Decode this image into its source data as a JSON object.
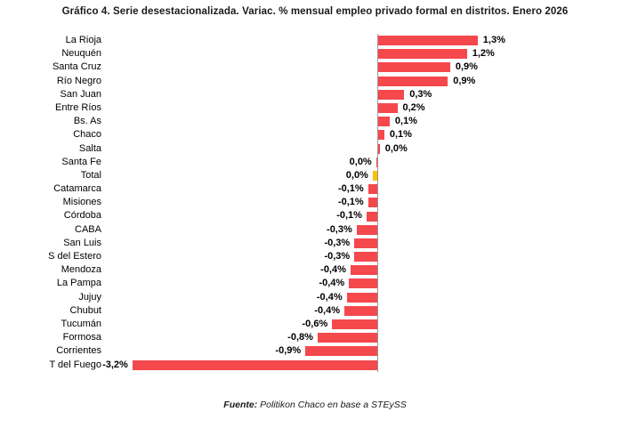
{
  "title": "Gráfico 4. Serie desestacionalizada. Variac. % mensual empleo privado formal en distritos. Enero 2026",
  "source": {
    "prefix": "Fuente:",
    "text": "Politikon Chaco en base a STEySS"
  },
  "colors": {
    "bar": "#F4484D",
    "highlight": "#FFC000",
    "axis": "#999999",
    "text": "#000000"
  },
  "chart_data": {
    "type": "bar",
    "orientation": "horizontal",
    "title": "Gráfico 4. Serie desestacionalizada. Variac. % mensual empleo privado formal en distritos. Enero 2026",
    "unit": "%",
    "value_axis_range": [
      -3.5,
      1.6
    ],
    "grid": false,
    "legend": false,
    "data_labels": true,
    "categories": [
      "La Rioja",
      "Neuquén",
      "Santa Cruz",
      "Río Negro",
      "San Juan",
      "Entre Ríos",
      "Bs. As",
      "Chaco",
      "Salta",
      "Santa Fe",
      "Total",
      "Catamarca",
      "Misiones",
      "Córdoba",
      "CABA",
      "San Luis",
      "S del Estero",
      "Mendoza",
      "La Pampa",
      "Jujuy",
      "Chubut",
      "Tucumán",
      "Formosa",
      "Corrientes",
      "T del Fuego"
    ],
    "bars": [
      {
        "category": "La Rioja",
        "label": "1,3%",
        "value": 1.3,
        "bar_estimate": 1.3,
        "highlight": false
      },
      {
        "category": "Neuquén",
        "label": "1,2%",
        "value": 1.2,
        "bar_estimate": 1.16,
        "highlight": false
      },
      {
        "category": "Santa Cruz",
        "label": "0,9%",
        "value": 0.9,
        "bar_estimate": 0.94,
        "highlight": false
      },
      {
        "category": "Río Negro",
        "label": "0,9%",
        "value": 0.9,
        "bar_estimate": 0.91,
        "highlight": false
      },
      {
        "category": "San Juan",
        "label": "0,3%",
        "value": 0.3,
        "bar_estimate": 0.34,
        "highlight": false
      },
      {
        "category": "Entre Ríos",
        "label": "0,2%",
        "value": 0.2,
        "bar_estimate": 0.25,
        "highlight": false
      },
      {
        "category": "Bs. As",
        "label": "0,1%",
        "value": 0.1,
        "bar_estimate": 0.15,
        "highlight": false
      },
      {
        "category": "Chaco",
        "label": "0,1%",
        "value": 0.1,
        "bar_estimate": 0.08,
        "highlight": false
      },
      {
        "category": "Salta",
        "label": "0,0%",
        "value": 0.0,
        "bar_estimate": 0.02,
        "highlight": false
      },
      {
        "category": "Santa Fe",
        "label": "0,0%",
        "value": 0.0,
        "bar_estimate": -0.015,
        "highlight": false
      },
      {
        "category": "Total",
        "label": "0,0%",
        "value": 0.0,
        "bar_estimate": -0.06,
        "highlight": true
      },
      {
        "category": "Catamarca",
        "label": "-0,1%",
        "value": -0.1,
        "bar_estimate": -0.12,
        "highlight": false
      },
      {
        "category": "Misiones",
        "label": "-0,1%",
        "value": -0.1,
        "bar_estimate": -0.12,
        "highlight": false
      },
      {
        "category": "Córdoba",
        "label": "-0,1%",
        "value": -0.1,
        "bar_estimate": -0.14,
        "highlight": false
      },
      {
        "category": "CABA",
        "label": "-0,3%",
        "value": -0.3,
        "bar_estimate": -0.27,
        "highlight": false
      },
      {
        "category": "San Luis",
        "label": "-0,3%",
        "value": -0.3,
        "bar_estimate": -0.3,
        "highlight": false
      },
      {
        "category": "S del Estero",
        "label": "-0,3%",
        "value": -0.3,
        "bar_estimate": -0.3,
        "highlight": false
      },
      {
        "category": "Mendoza",
        "label": "-0,4%",
        "value": -0.4,
        "bar_estimate": -0.35,
        "highlight": false
      },
      {
        "category": "La Pampa",
        "label": "-0,4%",
        "value": -0.4,
        "bar_estimate": -0.37,
        "highlight": false
      },
      {
        "category": "Jujuy",
        "label": "-0,4%",
        "value": -0.4,
        "bar_estimate": -0.4,
        "highlight": false
      },
      {
        "category": "Chubut",
        "label": "-0,4%",
        "value": -0.4,
        "bar_estimate": -0.43,
        "highlight": false
      },
      {
        "category": "Tucumán",
        "label": "-0,6%",
        "value": -0.6,
        "bar_estimate": -0.59,
        "highlight": false
      },
      {
        "category": "Formosa",
        "label": "-0,8%",
        "value": -0.8,
        "bar_estimate": -0.78,
        "highlight": false
      },
      {
        "category": "Corrientes",
        "label": "-0,9%",
        "value": -0.9,
        "bar_estimate": -0.94,
        "highlight": false
      },
      {
        "category": "T del Fuego",
        "label": "-3,2%",
        "value": -3.2,
        "bar_estimate": -3.2,
        "highlight": false
      }
    ]
  }
}
